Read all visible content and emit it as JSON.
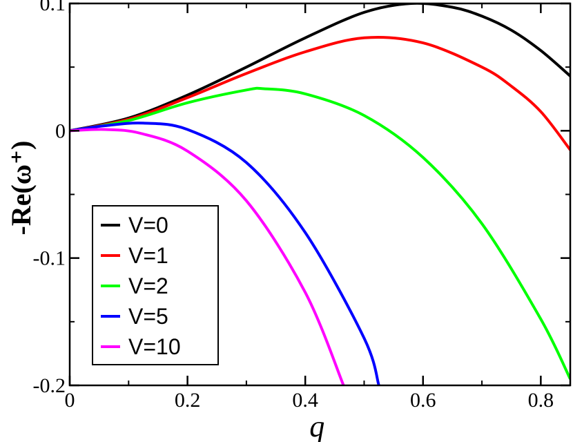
{
  "chart_data": {
    "type": "line",
    "xlabel": "q",
    "ylabel": "-Re(ω⁺)",
    "xlim": [
      0,
      0.85
    ],
    "ylim": [
      -0.2,
      0.1
    ],
    "xticks": [
      {
        "value": 0,
        "label": "0"
      },
      {
        "value": 0.2,
        "label": "0.2"
      },
      {
        "value": 0.4,
        "label": "0.4"
      },
      {
        "value": 0.6,
        "label": "0.6"
      },
      {
        "value": 0.8,
        "label": "0.8"
      }
    ],
    "yticks": [
      {
        "value": 0.1,
        "label": "0.1"
      },
      {
        "value": 0,
        "label": "0"
      },
      {
        "value": -0.1,
        "label": "-0.1"
      },
      {
        "value": -0.2,
        "label": "-0.2"
      }
    ],
    "grid": false,
    "legend_position": "bottom-left",
    "series": [
      {
        "name": "V=0",
        "color": "#000000",
        "x": [
          0,
          0.1,
          0.2,
          0.3,
          0.4,
          0.5,
          0.58,
          0.65,
          0.7,
          0.75,
          0.8,
          0.85
        ],
        "y": [
          0,
          0.01,
          0.028,
          0.05,
          0.073,
          0.093,
          0.1,
          0.097,
          0.09,
          0.079,
          0.063,
          0.043
        ]
      },
      {
        "name": "V=1",
        "color": "#ff0000",
        "x": [
          0,
          0.1,
          0.2,
          0.3,
          0.4,
          0.5,
          0.6,
          0.7,
          0.75,
          0.8,
          0.85
        ],
        "y": [
          0,
          0.009,
          0.026,
          0.045,
          0.062,
          0.073,
          0.069,
          0.05,
          0.035,
          0.015,
          -0.015
        ]
      },
      {
        "name": "V=2",
        "color": "#00ff00",
        "x": [
          0,
          0.1,
          0.2,
          0.3,
          0.33,
          0.4,
          0.5,
          0.6,
          0.7,
          0.8,
          0.85
        ],
        "y": [
          0,
          0.008,
          0.022,
          0.032,
          0.033,
          0.029,
          0.012,
          -0.021,
          -0.073,
          -0.148,
          -0.195
        ]
      },
      {
        "name": "V=5",
        "color": "#0000ff",
        "x": [
          0,
          0.06,
          0.125,
          0.2,
          0.3,
          0.4,
          0.5,
          0.525
        ],
        "y": [
          0,
          0.004,
          0.006,
          0.001,
          -0.025,
          -0.08,
          -0.163,
          -0.2
        ]
      },
      {
        "name": "V=10",
        "color": "#ff00ff",
        "x": [
          0,
          0.06,
          0.12,
          0.2,
          0.3,
          0.4,
          0.465
        ],
        "y": [
          0,
          0.001,
          -0.002,
          -0.016,
          -0.055,
          -0.127,
          -0.2
        ]
      }
    ]
  }
}
